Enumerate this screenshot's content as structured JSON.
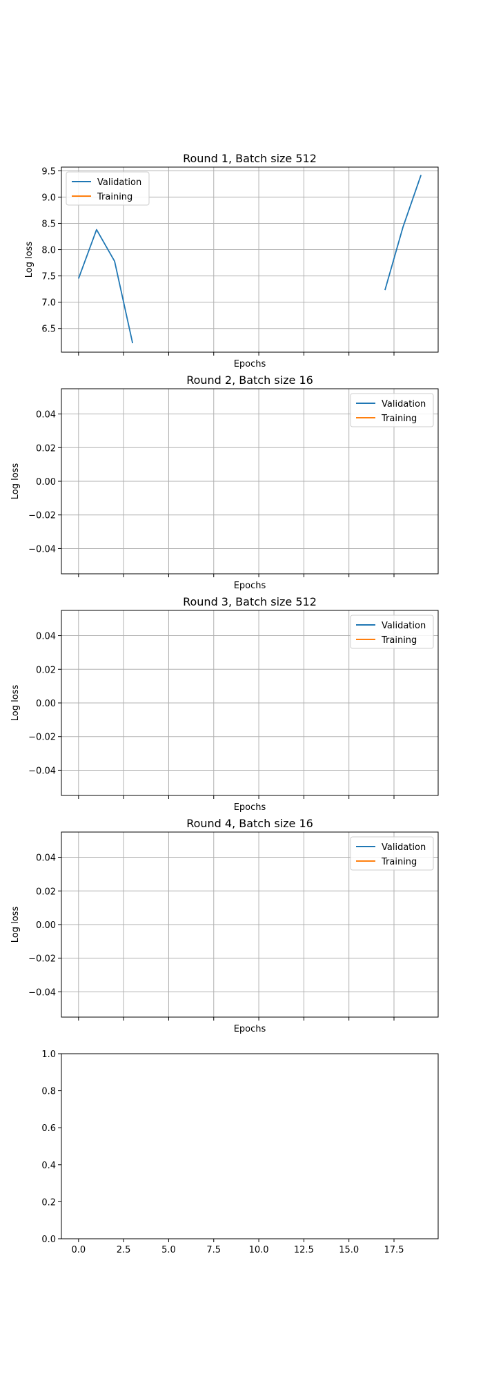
{
  "chart_data": [
    {
      "type": "line",
      "title": "Round 1, Batch size 512",
      "xlabel": "Epochs",
      "ylabel": "Log loss",
      "xlim": [
        -0.95,
        19.95
      ],
      "ylim": [
        6.05,
        9.57
      ],
      "x_ticks": [
        0,
        2.5,
        5,
        7.5,
        10,
        12.5,
        15,
        17.5
      ],
      "x_ticklabels_visible": false,
      "y_ticks": [
        6.5,
        7.0,
        7.5,
        8.0,
        8.5,
        9.0,
        9.5
      ],
      "y_ticklabels": [
        "6.5",
        "7.0",
        "7.5",
        "8.0",
        "8.5",
        "9.0",
        "9.5"
      ],
      "grid": true,
      "legend_position": "upper-left",
      "series": [
        {
          "name": "Validation",
          "color": "#1f77b4",
          "segments": [
            {
              "x": [
                0,
                1,
                2,
                3
              ],
              "y": [
                7.45,
                8.38,
                7.78,
                6.22
              ]
            },
            {
              "x": [
                17,
                18,
                19
              ],
              "y": [
                7.23,
                8.43,
                9.42
              ]
            }
          ]
        },
        {
          "name": "Training",
          "color": "#ff7f0e",
          "segments": []
        }
      ]
    },
    {
      "type": "line",
      "title": "Round 2, Batch size 16",
      "xlabel": "Epochs",
      "ylabel": "Log loss",
      "xlim": [
        -0.95,
        19.95
      ],
      "ylim": [
        -0.055,
        0.055
      ],
      "x_ticks": [
        0,
        2.5,
        5,
        7.5,
        10,
        12.5,
        15,
        17.5
      ],
      "x_ticklabels_visible": false,
      "y_ticks": [
        -0.04,
        -0.02,
        0.0,
        0.02,
        0.04
      ],
      "y_ticklabels": [
        "−0.04",
        "−0.02",
        "0.00",
        "0.02",
        "0.04"
      ],
      "grid": true,
      "legend_position": "upper-right",
      "series": [
        {
          "name": "Validation",
          "color": "#1f77b4",
          "segments": []
        },
        {
          "name": "Training",
          "color": "#ff7f0e",
          "segments": []
        }
      ]
    },
    {
      "type": "line",
      "title": "Round 3, Batch size 512",
      "xlabel": "Epochs",
      "ylabel": "Log loss",
      "xlim": [
        -0.95,
        19.95
      ],
      "ylim": [
        -0.055,
        0.055
      ],
      "x_ticks": [
        0,
        2.5,
        5,
        7.5,
        10,
        12.5,
        15,
        17.5
      ],
      "x_ticklabels_visible": false,
      "y_ticks": [
        -0.04,
        -0.02,
        0.0,
        0.02,
        0.04
      ],
      "y_ticklabels": [
        "−0.04",
        "−0.02",
        "0.00",
        "0.02",
        "0.04"
      ],
      "grid": true,
      "legend_position": "upper-right",
      "series": [
        {
          "name": "Validation",
          "color": "#1f77b4",
          "segments": []
        },
        {
          "name": "Training",
          "color": "#ff7f0e",
          "segments": []
        }
      ]
    },
    {
      "type": "line",
      "title": "Round 4, Batch size 16",
      "xlabel": "Epochs",
      "ylabel": "Log loss",
      "xlim": [
        -0.95,
        19.95
      ],
      "ylim": [
        -0.055,
        0.055
      ],
      "x_ticks": [
        0,
        2.5,
        5,
        7.5,
        10,
        12.5,
        15,
        17.5
      ],
      "x_ticklabels_visible": false,
      "y_ticks": [
        -0.04,
        -0.02,
        0.0,
        0.02,
        0.04
      ],
      "y_ticklabels": [
        "−0.04",
        "−0.02",
        "0.00",
        "0.02",
        "0.04"
      ],
      "grid": true,
      "legend_position": "upper-right",
      "series": [
        {
          "name": "Validation",
          "color": "#1f77b4",
          "segments": []
        },
        {
          "name": "Training",
          "color": "#ff7f0e",
          "segments": []
        }
      ]
    },
    {
      "type": "line",
      "title": "",
      "xlabel": "",
      "ylabel": "",
      "xlim": [
        -0.95,
        19.95
      ],
      "ylim": [
        0,
        1
      ],
      "x_ticks": [
        0,
        2.5,
        5,
        7.5,
        10,
        12.5,
        15,
        17.5
      ],
      "x_ticklabels": [
        "0.0",
        "2.5",
        "5.0",
        "7.5",
        "10.0",
        "12.5",
        "15.0",
        "17.5"
      ],
      "x_ticklabels_visible": true,
      "y_ticks": [
        0.0,
        0.2,
        0.4,
        0.6,
        0.8,
        1.0
      ],
      "y_ticklabels": [
        "0.0",
        "0.2",
        "0.4",
        "0.6",
        "0.8",
        "1.0"
      ],
      "grid": false,
      "legend_position": "",
      "series": []
    }
  ]
}
